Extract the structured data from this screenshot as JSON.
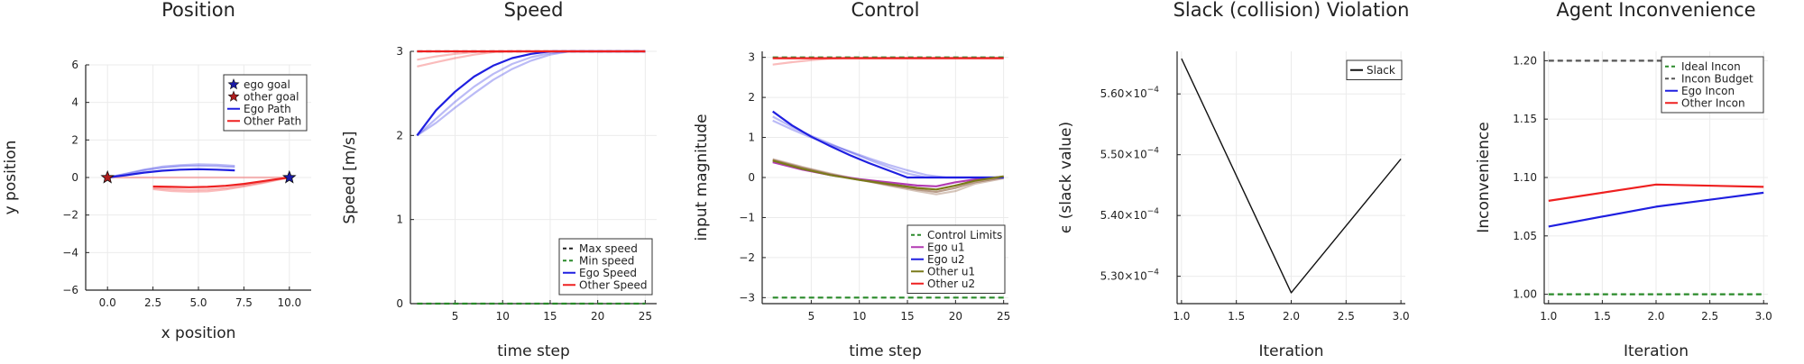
{
  "chart_data": [
    {
      "type": "line",
      "title": "Position",
      "xlabel": "x position",
      "ylabel": "y position",
      "xlim": [
        -1.2,
        11.2
      ],
      "ylim": [
        -6,
        6
      ],
      "xticks": [
        "0.0",
        "2.5",
        "5.0",
        "7.5",
        "10.0"
      ],
      "xtick_values": [
        0,
        2.5,
        5,
        7.5,
        10
      ],
      "yticks": [
        "−6",
        "−4",
        "−2",
        "0",
        "2",
        "4",
        "6"
      ],
      "ytick_values": [
        -6,
        -4,
        -2,
        0,
        2,
        4,
        6
      ],
      "grid": true,
      "legend": "top-right",
      "markers": [
        {
          "name": "ego goal",
          "x": 10,
          "y": 0,
          "color": "#1a1aa6"
        },
        {
          "name": "other goal",
          "x": 0,
          "y": 0,
          "color": "#b01c1c"
        }
      ],
      "series": [
        {
          "name": "Ego Path",
          "color": "#1f1fe0",
          "opacity": 1,
          "x": [
            0,
            1,
            2,
            3,
            4,
            5,
            6,
            7
          ],
          "y": [
            0,
            0.12,
            0.26,
            0.36,
            0.42,
            0.44,
            0.42,
            0.38
          ]
        },
        {
          "color": "#1f1fe0",
          "opacity": 0.3,
          "x": [
            0,
            1,
            2,
            3,
            4,
            5,
            6,
            7
          ],
          "y": [
            0,
            0.18,
            0.38,
            0.52,
            0.6,
            0.62,
            0.6,
            0.55
          ]
        },
        {
          "color": "#1f1fe0",
          "opacity": 0.3,
          "x": [
            0,
            1,
            2,
            3,
            4,
            5,
            6,
            7
          ],
          "y": [
            0,
            0.2,
            0.42,
            0.58,
            0.66,
            0.7,
            0.68,
            0.62
          ]
        },
        {
          "name": "Other Path",
          "color": "#ee2020",
          "opacity": 1,
          "x": [
            2.5,
            3.5,
            4.5,
            5.5,
            6.5,
            7.5,
            8.5,
            9.5,
            10
          ],
          "y": [
            -0.48,
            -0.5,
            -0.52,
            -0.5,
            -0.44,
            -0.34,
            -0.2,
            -0.06,
            0
          ]
        },
        {
          "color": "#ee2020",
          "opacity": 0.3,
          "x": [
            2.5,
            3.5,
            4.5,
            5.5,
            6.5,
            7.5,
            8.5,
            9.5,
            10
          ],
          "y": [
            -0.55,
            -0.62,
            -0.66,
            -0.64,
            -0.56,
            -0.42,
            -0.26,
            -0.08,
            0
          ]
        },
        {
          "color": "#ee2020",
          "opacity": 0.3,
          "x": [
            2.5,
            3.5,
            4.5,
            5.5,
            6.5,
            7.5,
            8.5,
            9.5,
            10
          ],
          "y": [
            -0.62,
            -0.72,
            -0.76,
            -0.74,
            -0.64,
            -0.48,
            -0.3,
            -0.1,
            0
          ]
        },
        {
          "color": "#ee2020",
          "opacity": 0.3,
          "x": [
            0,
            10
          ],
          "y": [
            0,
            0
          ]
        }
      ]
    },
    {
      "type": "line",
      "title": "Speed",
      "xlabel": "time step",
      "ylabel": "Speed [m/s]",
      "xlim": [
        0.3,
        26.2
      ],
      "ylim": [
        0,
        3
      ],
      "xticks": [
        "5",
        "10",
        "15",
        "20",
        "25"
      ],
      "xtick_values": [
        5,
        10,
        15,
        20,
        25
      ],
      "yticks": [
        "0",
        "1",
        "2",
        "3"
      ],
      "ytick_values": [
        0,
        1,
        2,
        3
      ],
      "grid": true,
      "legend": "bottom-right",
      "series": [
        {
          "name": "Max speed",
          "color": "#222222",
          "opacity": 1,
          "dash": "6,4",
          "x": [
            1,
            25
          ],
          "y": [
            3,
            3
          ]
        },
        {
          "name": "Min speed",
          "color": "#2a8a2a",
          "opacity": 1,
          "dash": "6,4",
          "x": [
            1,
            25
          ],
          "y": [
            0,
            0
          ]
        },
        {
          "name": "Ego Speed",
          "color": "#1f1fe0",
          "opacity": 1,
          "x": [
            1,
            3,
            5,
            7,
            9,
            11,
            13,
            15,
            17,
            19,
            21,
            23,
            25
          ],
          "y": [
            2.0,
            2.3,
            2.52,
            2.7,
            2.83,
            2.92,
            2.97,
            3,
            3,
            3,
            3,
            3,
            3
          ]
        },
        {
          "color": "#1f1fe0",
          "opacity": 0.3,
          "x": [
            1,
            3,
            5,
            7,
            9,
            11,
            13,
            15,
            17,
            19,
            21,
            23,
            25
          ],
          "y": [
            2.0,
            2.2,
            2.4,
            2.58,
            2.73,
            2.85,
            2.93,
            2.98,
            3,
            3,
            3,
            3,
            3
          ]
        },
        {
          "color": "#1f1fe0",
          "opacity": 0.3,
          "x": [
            1,
            3,
            5,
            7,
            9,
            11,
            13,
            15,
            17,
            19,
            21,
            23,
            25
          ],
          "y": [
            2.0,
            2.15,
            2.33,
            2.5,
            2.66,
            2.79,
            2.89,
            2.96,
            3,
            3,
            3,
            3,
            3
          ]
        },
        {
          "name": "Other Speed",
          "color": "#ee2020",
          "opacity": 1,
          "x": [
            1,
            25
          ],
          "y": [
            3,
            3
          ]
        },
        {
          "color": "#ee2020",
          "opacity": 0.3,
          "x": [
            1,
            3,
            5,
            7,
            9,
            11,
            13,
            25
          ],
          "y": [
            2.82,
            2.87,
            2.92,
            2.96,
            2.99,
            3,
            3,
            3
          ]
        },
        {
          "color": "#ee2020",
          "opacity": 0.3,
          "x": [
            1,
            3,
            5,
            7,
            9,
            11,
            25
          ],
          "y": [
            2.9,
            2.94,
            2.97,
            2.99,
            3,
            3,
            3
          ]
        }
      ]
    },
    {
      "type": "line",
      "title": "Control",
      "xlabel": "time step",
      "ylabel": "input magnitude",
      "xlim": [
        -0.1,
        25.5
      ],
      "ylim": [
        -3.15,
        3.15
      ],
      "xticks": [
        "5",
        "10",
        "15",
        "20",
        "25"
      ],
      "xtick_values": [
        5,
        10,
        15,
        20,
        25
      ],
      "yticks": [
        "−3",
        "−2",
        "−1",
        "0",
        "1",
        "2",
        "3"
      ],
      "ytick_values": [
        -3,
        -2,
        -1,
        0,
        1,
        2,
        3
      ],
      "grid": true,
      "legend": "bottom-right",
      "series": [
        {
          "name": "Control Limits",
          "color": "#2a8a2a",
          "opacity": 1,
          "dash": "6,4",
          "x": [
            1,
            25
          ],
          "y": [
            -3,
            -3
          ]
        },
        {
          "color": "#2a8a2a",
          "opacity": 1,
          "dash": "6,4",
          "x": [
            1,
            25
          ],
          "y": [
            3,
            3
          ]
        },
        {
          "name": "Ego u1",
          "color": "#b23ab2",
          "opacity": 1,
          "x": [
            1,
            4,
            7,
            10,
            13,
            16,
            18,
            20,
            22,
            25
          ],
          "y": [
            0.38,
            0.2,
            0.06,
            -0.04,
            -0.12,
            -0.2,
            -0.22,
            -0.12,
            -0.05,
            0.02
          ]
        },
        {
          "name": "Ego u2",
          "color": "#1f1fe0",
          "opacity": 1,
          "x": [
            1,
            3,
            5,
            7,
            9,
            11,
            13,
            15,
            25
          ],
          "y": [
            1.65,
            1.3,
            1.02,
            0.78,
            0.56,
            0.36,
            0.18,
            0,
            0
          ]
        },
        {
          "color": "#1f1fe0",
          "opacity": 0.3,
          "x": [
            1,
            3,
            5,
            7,
            9,
            11,
            13,
            15,
            17,
            25
          ],
          "y": [
            1.52,
            1.26,
            1.04,
            0.84,
            0.64,
            0.44,
            0.26,
            0.1,
            0,
            0
          ]
        },
        {
          "color": "#1f1fe0",
          "opacity": 0.3,
          "x": [
            1,
            3,
            5,
            7,
            9,
            11,
            13,
            15,
            17,
            19,
            25
          ],
          "y": [
            1.42,
            1.2,
            1.0,
            0.82,
            0.65,
            0.48,
            0.32,
            0.18,
            0.06,
            0,
            0
          ]
        },
        {
          "name": "Other u1",
          "color": "#7a7a1a",
          "opacity": 1,
          "x": [
            1,
            4,
            7,
            10,
            13,
            16,
            18,
            20,
            22,
            25
          ],
          "y": [
            0.42,
            0.22,
            0.06,
            -0.06,
            -0.16,
            -0.26,
            -0.3,
            -0.2,
            -0.08,
            0.03
          ]
        },
        {
          "color": "#8a5a3a",
          "opacity": 0.6,
          "x": [
            1,
            4,
            7,
            10,
            13,
            16,
            18,
            20,
            22,
            25
          ],
          "y": [
            0.44,
            0.25,
            0.08,
            -0.06,
            -0.18,
            -0.3,
            -0.36,
            -0.26,
            -0.12,
            0.0
          ]
        },
        {
          "color": "#8a5a3a",
          "opacity": 0.35,
          "x": [
            1,
            4,
            7,
            10,
            13,
            16,
            18,
            20,
            22,
            25
          ],
          "y": [
            0.46,
            0.27,
            0.1,
            -0.05,
            -0.2,
            -0.34,
            -0.42,
            -0.34,
            -0.16,
            -0.02
          ]
        },
        {
          "name": "Other u2",
          "color": "#ee2020",
          "opacity": 1,
          "x": [
            1,
            25
          ],
          "y": [
            2.98,
            2.98
          ]
        },
        {
          "color": "#ee2020",
          "opacity": 0.3,
          "x": [
            1,
            3,
            5,
            7,
            9,
            25
          ],
          "y": [
            2.82,
            2.88,
            2.93,
            2.97,
            2.99,
            2.99
          ]
        }
      ]
    },
    {
      "type": "line",
      "title": "Slack (collision) Violation",
      "xlabel": "Iteration",
      "ylabel": "ϵ (slack value)",
      "xlim": [
        0.96,
        3.04
      ],
      "ylim": [
        5.255,
        5.67
      ],
      "xticks": [
        "1.0",
        "1.5",
        "2.0",
        "2.5",
        "3.0"
      ],
      "xtick_values": [
        1.0,
        1.5,
        2.0,
        2.5,
        3.0
      ],
      "yticks": [
        "5.30×10",
        "5.40×10",
        "5.50×10",
        "5.60×10"
      ],
      "ytick_exponent": "−4",
      "ytick_values": [
        5.3,
        5.4,
        5.5,
        5.6
      ],
      "grid": true,
      "legend": "top-right",
      "series": [
        {
          "name": "Slack",
          "color": "#111111",
          "opacity": 1,
          "x": [
            1,
            2,
            3
          ],
          "y": [
            5.658,
            5.273,
            5.493
          ]
        }
      ]
    },
    {
      "type": "line",
      "title": "Agent Inconvenience",
      "xlabel": "Iteration",
      "ylabel": "Inconvenience",
      "xlim": [
        0.96,
        3.04
      ],
      "ylim": [
        0.992,
        1.208
      ],
      "xticks": [
        "1.0",
        "1.5",
        "2.0",
        "2.5",
        "3.0"
      ],
      "xtick_values": [
        1.0,
        1.5,
        2.0,
        2.5,
        3.0
      ],
      "yticks": [
        "1.00",
        "1.05",
        "1.10",
        "1.15",
        "1.20"
      ],
      "ytick_values": [
        1.0,
        1.05,
        1.1,
        1.15,
        1.2
      ],
      "grid": true,
      "legend": "top-right",
      "series": [
        {
          "name": "Ideal Incon",
          "color": "#2a8a2a",
          "opacity": 1,
          "dash": "6,4",
          "x": [
            1,
            3
          ],
          "y": [
            1.0,
            1.0
          ]
        },
        {
          "name": "Incon Budget",
          "color": "#555555",
          "opacity": 1,
          "dash": "6,4",
          "x": [
            1,
            3
          ],
          "y": [
            1.2,
            1.2
          ]
        },
        {
          "name": "Ego Incon",
          "color": "#1f1fe0",
          "opacity": 1,
          "x": [
            1,
            2,
            3
          ],
          "y": [
            1.058,
            1.075,
            1.087
          ]
        },
        {
          "name": "Other Incon",
          "color": "#ee2020",
          "opacity": 1,
          "x": [
            1,
            2,
            3
          ],
          "y": [
            1.08,
            1.094,
            1.092
          ]
        }
      ]
    }
  ]
}
